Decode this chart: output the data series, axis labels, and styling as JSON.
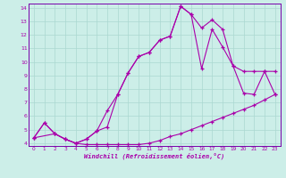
{
  "xlabel": "Windchill (Refroidissement éolien,°C)",
  "bg_color": "#cceee8",
  "grid_color": "#aad8d0",
  "line_color": "#aa00aa",
  "spine_color": "#7700aa",
  "xlim": [
    -0.5,
    23.5
  ],
  "ylim": [
    3.8,
    14.3
  ],
  "xticks": [
    0,
    1,
    2,
    3,
    4,
    5,
    6,
    7,
    8,
    9,
    10,
    11,
    12,
    13,
    14,
    15,
    16,
    17,
    18,
    19,
    20,
    21,
    22,
    23
  ],
  "yticks": [
    4,
    5,
    6,
    7,
    8,
    9,
    10,
    11,
    12,
    13,
    14
  ],
  "line1_x": [
    0,
    1,
    2,
    3,
    4,
    5,
    6,
    7,
    8,
    9,
    10,
    11,
    12,
    13,
    14,
    15,
    16,
    17,
    18,
    19,
    20,
    21,
    22,
    23
  ],
  "line1_y": [
    4.4,
    5.5,
    4.7,
    4.3,
    4.0,
    3.9,
    3.9,
    3.9,
    3.9,
    3.9,
    3.9,
    4.0,
    4.2,
    4.5,
    4.7,
    5.0,
    5.3,
    5.6,
    5.9,
    6.2,
    6.5,
    6.8,
    7.2,
    7.6
  ],
  "line2_x": [
    0,
    1,
    2,
    3,
    4,
    5,
    6,
    7,
    8,
    9,
    10,
    11,
    12,
    13,
    14,
    15,
    16,
    17,
    18,
    19,
    20,
    21,
    22,
    23
  ],
  "line2_y": [
    4.4,
    5.5,
    4.7,
    4.3,
    4.0,
    4.3,
    4.9,
    6.4,
    7.6,
    9.2,
    10.4,
    10.7,
    11.6,
    11.9,
    14.1,
    13.5,
    9.5,
    12.4,
    11.1,
    9.7,
    7.7,
    7.6,
    9.3,
    7.6
  ],
  "line3_x": [
    0,
    2,
    3,
    4,
    5,
    6,
    7,
    8,
    9,
    10,
    11,
    12,
    13,
    14,
    15,
    16,
    17,
    18,
    19,
    20,
    21,
    22,
    23
  ],
  "line3_y": [
    4.4,
    4.7,
    4.3,
    4.0,
    4.3,
    4.9,
    5.2,
    7.6,
    9.2,
    10.4,
    10.7,
    11.6,
    11.9,
    14.1,
    13.5,
    12.5,
    13.1,
    12.4,
    9.7,
    9.3,
    9.3,
    9.3,
    9.3
  ]
}
